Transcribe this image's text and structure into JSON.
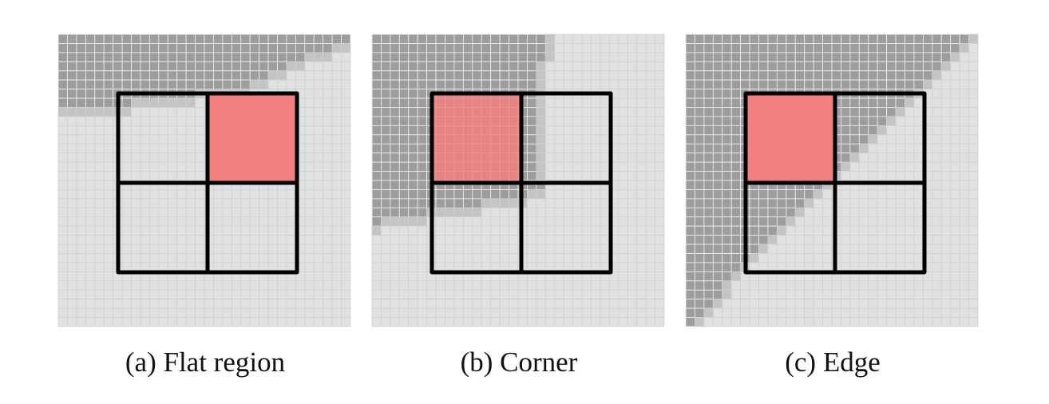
{
  "colors": {
    "dark": "#9d9d9d",
    "mid": "#c4c4c4",
    "light": "#e0e1e1",
    "grid_light": "#cfd0d0",
    "grid_dark": "#f2f2f2",
    "highlight": "#f47f7f",
    "frame": "#000000",
    "caption": "#111111"
  },
  "panels": [
    {
      "label": "(a) Flat region",
      "kind": "flat-region",
      "highlighted_window": "top-right"
    },
    {
      "label": "(b) Corner",
      "kind": "corner",
      "highlighted_window": "top-left"
    },
    {
      "label": "(c) Edge",
      "kind": "edge",
      "highlighted_window": "top-left"
    }
  ]
}
